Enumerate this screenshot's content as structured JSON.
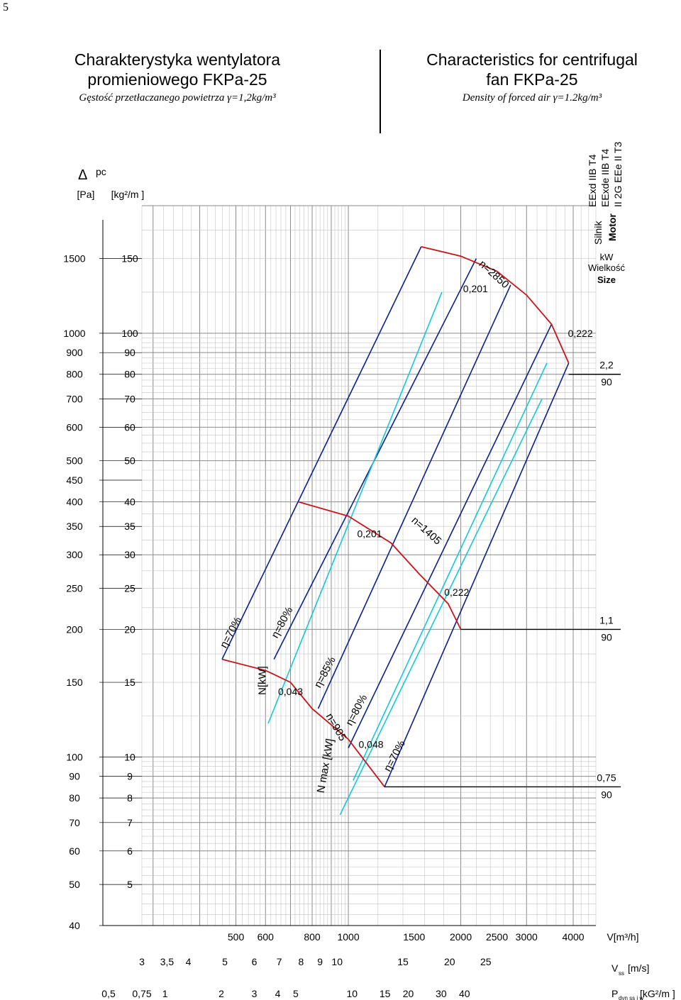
{
  "page_number": "5",
  "header": {
    "pl_title_1": "Charakterystyka  wentylatora",
    "pl_title_2": "promieniowego  FKPa-25",
    "pl_density": "Gęstość  przetłaczanego  powietrza  γ=1,2kg/m³",
    "en_title_1": "Characteristics for centrifugal",
    "en_title_2": "fan   FKPa-25",
    "en_density": "Density of forced air  γ=1.2kg/m³"
  },
  "chart_data": {
    "type": "line",
    "xscale": "log",
    "yscale": "log",
    "xlabel": "V[m³/h]",
    "ylabel_pa": "[Pa]",
    "ylabel_kg": "[kg²/m ]",
    "ylabel_symbol": "Δ p c",
    "xlim": [
      280,
      4600
    ],
    "ylim": [
      40,
      2000
    ],
    "x_ticks": [
      500,
      600,
      800,
      1000,
      1500,
      2000,
      2500,
      3000,
      4000
    ],
    "x_tick_labels": [
      "500",
      "600",
      "800",
      "1000",
      "1500",
      "2000",
      "2500",
      "3000",
      "4000"
    ],
    "y_ticks_pa": [
      1500,
      1000,
      900,
      800,
      700,
      600,
      500,
      450,
      400,
      350,
      300,
      250,
      200,
      150,
      100,
      90,
      80,
      70,
      60,
      50,
      40
    ],
    "y_tick_labels_pa": [
      "1500",
      "1000",
      "900",
      "800",
      "700",
      "600",
      "500",
      "450",
      "400",
      "350",
      "300",
      "250",
      "200",
      "150",
      "100",
      "90",
      "80",
      "70",
      "60",
      "50",
      "40"
    ],
    "y_tick_labels_kg": [
      "150",
      "100",
      "90",
      "80",
      "70",
      "60",
      "50",
      "40",
      "35",
      "30",
      "25",
      "20",
      "15",
      "10",
      "9",
      "8",
      "7",
      "6",
      "5"
    ],
    "y_ticks_kg_pa": [
      1500,
      1000,
      900,
      800,
      700,
      600,
      500,
      400,
      350,
      300,
      250,
      200,
      150,
      100,
      90,
      80,
      70,
      60,
      50
    ],
    "secondary_axes": [
      {
        "label": "V",
        "sub": "ss",
        "unit": "[m/s]",
        "ticks": [
          "3",
          "3,5",
          "4",
          "5",
          "6",
          "7",
          "8",
          "9",
          "10",
          "15",
          "20",
          "25"
        ],
        "tick_at_v": [
          280,
          327,
          373,
          467,
          560,
          653,
          747,
          840,
          933,
          1400,
          1867,
          2333
        ]
      },
      {
        "label": "P",
        "sub": "dyn ss i w",
        "unit": "[kG²/m ]",
        "ticks": [
          "0,5",
          "0,75",
          "1",
          "2",
          "3",
          "4",
          "5",
          "10",
          "15",
          "20",
          "30",
          "40"
        ],
        "tick_at_v": [
          228,
          280,
          323,
          457,
          560,
          647,
          723,
          1023,
          1253,
          1447,
          1772,
          2046
        ]
      }
    ],
    "speed_curves": [
      {
        "label": "n=2850",
        "points": [
          [
            1567,
            1600
          ],
          [
            2000,
            1520
          ],
          [
            2500,
            1400
          ],
          [
            3000,
            1230
          ],
          [
            3500,
            1050
          ],
          [
            3890,
            850
          ]
        ]
      },
      {
        "label": "n=1405",
        "points": [
          [
            735,
            400
          ],
          [
            1000,
            370
          ],
          [
            1300,
            320
          ],
          [
            1550,
            270
          ],
          [
            1850,
            230
          ],
          [
            2000,
            200
          ]
        ]
      },
      {
        "label": "n=905",
        "points": [
          [
            459,
            170
          ],
          [
            600,
            160
          ],
          [
            700,
            150
          ],
          [
            800,
            130
          ],
          [
            1000,
            110
          ],
          [
            1250,
            85
          ]
        ]
      }
    ],
    "series": [
      {
        "label": "η=70%",
        "kind": "efficiency",
        "color": "#0b1f8f",
        "points": [
          [
            459,
            170
          ],
          [
            1567,
            1600
          ]
        ]
      },
      {
        "label": "η=80%",
        "kind": "efficiency",
        "color": "#0b1f8f",
        "points": [
          [
            632,
            170
          ],
          [
            2200,
            1500
          ]
        ]
      },
      {
        "label": "η=85%",
        "kind": "efficiency",
        "color": "#0b1f8f",
        "points": [
          [
            830,
            130
          ],
          [
            2720,
            1300
          ]
        ]
      },
      {
        "label": "η=80%",
        "kind": "efficiency",
        "color": "#0b1f8f",
        "points": [
          [
            1000,
            105
          ],
          [
            3500,
            1050
          ]
        ]
      },
      {
        "label": "η=70%",
        "kind": "efficiency",
        "color": "#0b1f8f",
        "points": [
          [
            1250,
            85
          ],
          [
            3890,
            850
          ]
        ]
      },
      {
        "label": "N[kW]",
        "kind": "power",
        "color": "#15c8d8",
        "points": [
          [
            610,
            120
          ],
          [
            1780,
            1250
          ]
        ]
      },
      {
        "label": "0,201 / 0,222",
        "kind": "power",
        "color": "#15c8d8",
        "points": [
          [
            1030,
            88
          ],
          [
            3400,
            850
          ]
        ]
      },
      {
        "label": "N max [kW]",
        "kind": "power",
        "color": "#15c8d8",
        "points": [
          [
            950,
            73
          ],
          [
            3300,
            700
          ]
        ]
      }
    ],
    "annotations": [
      {
        "text": "0,201",
        "v": 2190,
        "p": 1250
      },
      {
        "text": "0,222",
        "v": 4180,
        "p": 980
      },
      {
        "text": "0,201",
        "v": 1140,
        "p": 330
      },
      {
        "text": "0,222",
        "v": 1950,
        "p": 240
      },
      {
        "text": "0,043",
        "v": 700,
        "p": 140
      },
      {
        "text": "0,048",
        "v": 1150,
        "p": 105
      },
      {
        "text": "N[kW]",
        "v": 600,
        "p": 140,
        "rotate": -90
      },
      {
        "text": "N max [kW]",
        "v": 860,
        "p": 82,
        "rotate": -80
      }
    ],
    "motor_table": {
      "heading": [
        "Silnik",
        "Motor"
      ],
      "types": [
        "EExd IIB  T4",
        "EExde IIB  T4",
        "II 2G EEe II T3"
      ],
      "kw_label": "kW",
      "size_label_pl": "Wielkość",
      "size_label_en": "Size",
      "rows": [
        {
          "kw": "2,2",
          "size": "90",
          "pressure_pa": 800
        },
        {
          "kw": "1,1",
          "size": "90",
          "pressure_pa": 200
        },
        {
          "kw": "0,75",
          "size": "90",
          "pressure_pa": 85
        }
      ]
    }
  }
}
